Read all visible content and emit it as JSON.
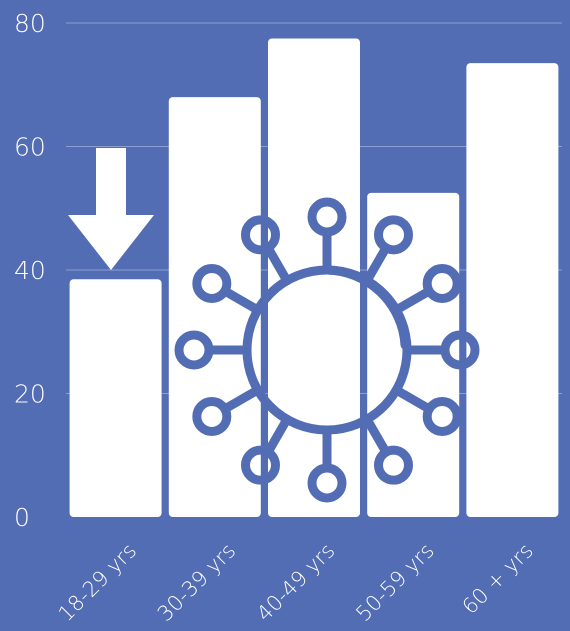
{
  "chart_data": {
    "type": "bar",
    "title": "",
    "xlabel": "",
    "ylabel": "",
    "categories": [
      "18-29 yrs",
      "30-39 yrs",
      "40-49 yrs",
      "50-59 yrs",
      "60 + yrs"
    ],
    "values": [
      38.5,
      68,
      77.5,
      52.5,
      73.5
    ],
    "ylim": [
      0,
      80
    ],
    "yticks": [
      "0",
      "20",
      "40",
      "60",
      "80"
    ],
    "grid": true,
    "legend": "none",
    "colors": {
      "background": "#536db5",
      "bar": "#ffffff",
      "text": "#ffffff",
      "gridline": "#8c9ed0",
      "icon_stroke": "#536db5"
    },
    "annotations": {
      "down_arrow": "down-arrow-icon on first bar",
      "virus_icon": "virus-icon overlay"
    }
  }
}
